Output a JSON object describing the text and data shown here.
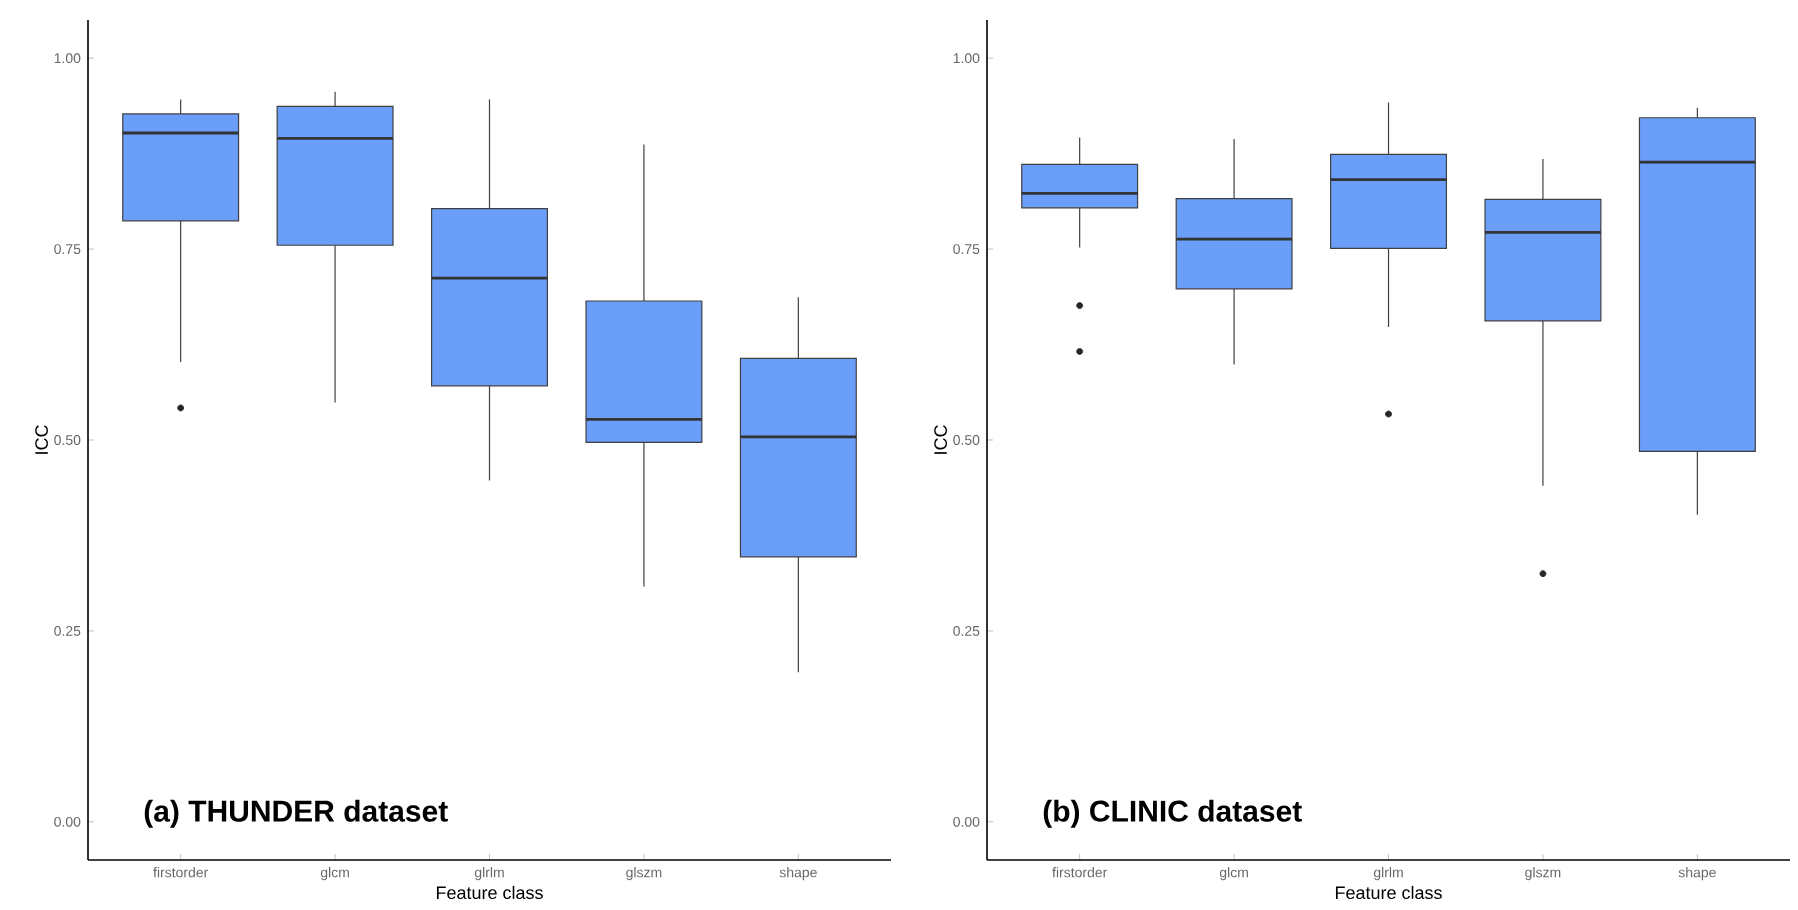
{
  "chart_data": [
    {
      "type": "box",
      "annotations": [
        "(a) THUNDER dataset"
      ],
      "xlabel": "Feature class",
      "ylabel": "ICC",
      "categories": [
        "firstorder",
        "glcm",
        "glrlm",
        "glszm",
        "shape"
      ],
      "color": "#6a9ef9",
      "ylim": [
        -0.05,
        1.05
      ],
      "yticks": [
        {
          "value": 0,
          "label": "0.00"
        },
        {
          "value": 0.25,
          "label": "0.25"
        },
        {
          "value": 0.5,
          "label": "0.50"
        },
        {
          "value": 0.75,
          "label": "0.75"
        },
        {
          "value": 1,
          "label": "1.00"
        }
      ],
      "boxes": [
        {
          "low": 0.602,
          "q1": 0.787,
          "median": 0.902,
          "q3": 0.927,
          "high": 0.946,
          "outliers": [
            0.542
          ]
        },
        {
          "low": 0.549,
          "q1": 0.755,
          "median": 0.895,
          "q3": 0.937,
          "high": 0.956
        },
        {
          "low": 0.447,
          "q1": 0.571,
          "median": 0.712,
          "q3": 0.803,
          "high": 0.946
        },
        {
          "low": 0.308,
          "q1": 0.497,
          "median": 0.527,
          "q3": 0.682,
          "high": 0.887
        },
        {
          "low": 0.196,
          "q1": 0.347,
          "median": 0.504,
          "q3": 0.607,
          "high": 0.687
        }
      ]
    },
    {
      "type": "box",
      "annotations": [
        "(b) CLINIC dataset"
      ],
      "xlabel": "Feature class",
      "ylabel": "ICC",
      "categories": [
        "firstorder",
        "glcm",
        "glrlm",
        "glszm",
        "shape"
      ],
      "color": "#6a9ef9",
      "ylim": [
        -0.05,
        1.05
      ],
      "yticks": [
        {
          "value": 0,
          "label": "0.00"
        },
        {
          "value": 0.25,
          "label": "0.25"
        },
        {
          "value": 0.5,
          "label": "0.50"
        },
        {
          "value": 0.75,
          "label": "0.75"
        },
        {
          "value": 1,
          "label": "1.00"
        }
      ],
      "boxes": [
        {
          "low": 0.752,
          "q1": 0.804,
          "median": 0.823,
          "q3": 0.861,
          "high": 0.896,
          "outliers": [
            0.676,
            0.616
          ]
        },
        {
          "low": 0.599,
          "q1": 0.698,
          "median": 0.763,
          "q3": 0.816,
          "high": 0.894
        },
        {
          "low": 0.648,
          "q1": 0.751,
          "median": 0.841,
          "q3": 0.874,
          "high": 0.942,
          "outliers": [
            0.534
          ]
        },
        {
          "low": 0.44,
          "q1": 0.656,
          "median": 0.772,
          "q3": 0.815,
          "high": 0.868,
          "outliers": [
            0.325
          ]
        },
        {
          "low": 0.402,
          "q1": 0.485,
          "median": 0.864,
          "q3": 0.922,
          "high": 0.935
        }
      ]
    }
  ]
}
